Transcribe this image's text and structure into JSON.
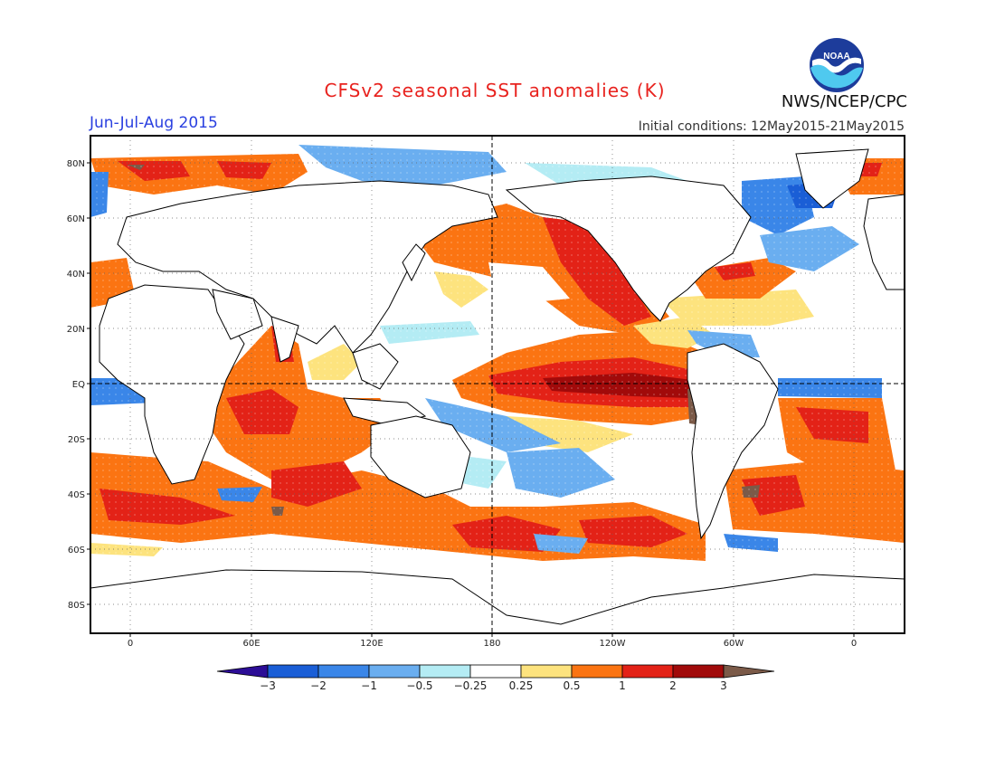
{
  "header": {
    "title": "CFSv2 seasonal SST anomalies (K)",
    "season": "Jun-Jul-Aug 2015",
    "initial_conditions": "Initial conditions: 12May2015-21May2015",
    "agency": "NWS/NCEP/CPC",
    "logo_text": "NOAA"
  },
  "map": {
    "projection": "equirectangular",
    "lon_range": [
      -20,
      382
    ],
    "lat_range": [
      -90,
      90
    ],
    "lat_labels": [
      "80N",
      "60N",
      "40N",
      "20N",
      "EQ",
      "20S",
      "40S",
      "60S",
      "80S"
    ],
    "lon_labels": [
      "0",
      "60E",
      "120E",
      "180",
      "120W",
      "60W",
      "0"
    ],
    "dashed_reference_lines": [
      "EQ",
      "180"
    ]
  },
  "colorbar": {
    "labels": [
      "-3",
      "-2",
      "-1",
      "-0.5",
      "-0.25",
      "0.25",
      "0.5",
      "1",
      "2",
      "3"
    ],
    "colors": [
      "#2c0d96",
      "#1a5ed6",
      "#3a86e8",
      "#6aaef0",
      "#b4ecf4",
      "#ffffff",
      "#fde37e",
      "#fb7412",
      "#e32217",
      "#a10a0a",
      "#7b5a48"
    ]
  }
}
